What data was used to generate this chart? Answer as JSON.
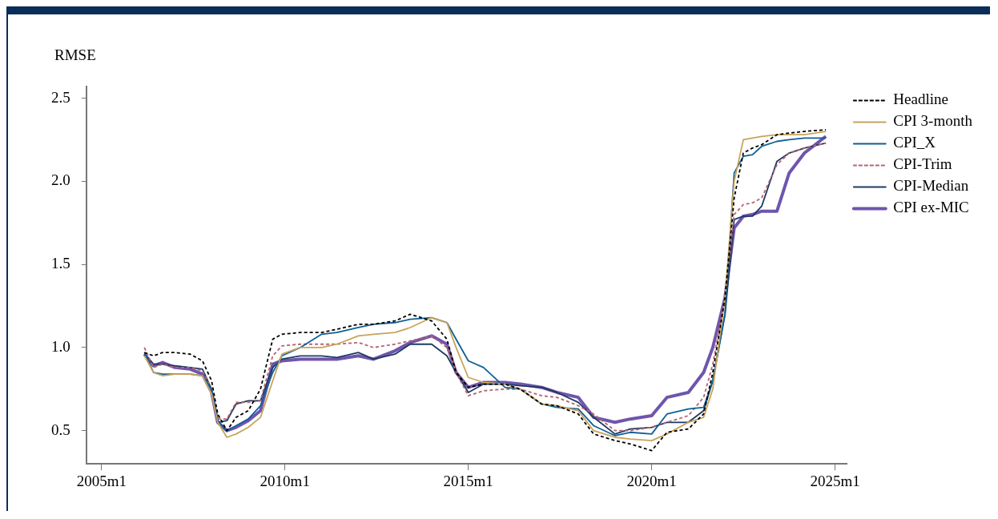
{
  "chart_data": {
    "type": "line",
    "ylabel": "RMSE",
    "x": [
      "2006-03",
      "2006-06",
      "2006-09",
      "2007-01",
      "2007-06",
      "2007-10",
      "2008-01",
      "2008-03",
      "2008-06",
      "2008-09",
      "2009-01",
      "2009-05",
      "2009-09",
      "2009-12",
      "2010-06",
      "2011-01",
      "2011-06",
      "2012-01",
      "2012-06",
      "2013-01",
      "2013-06",
      "2014-01",
      "2014-06",
      "2014-09",
      "2015-01",
      "2015-06",
      "2016-01",
      "2016-06",
      "2017-01",
      "2017-06",
      "2018-01",
      "2018-06",
      "2019-01",
      "2019-06",
      "2020-01",
      "2020-06",
      "2021-01",
      "2021-06",
      "2021-09",
      "2022-01",
      "2022-04",
      "2022-07",
      "2022-10",
      "2023-01",
      "2023-06",
      "2023-10",
      "2024-03",
      "2024-10"
    ],
    "series": [
      {
        "name": "Headline",
        "color": "#000000",
        "line_style": "dashed",
        "values": [
          0.97,
          0.95,
          0.97,
          0.97,
          0.96,
          0.92,
          0.8,
          0.6,
          0.5,
          0.58,
          0.62,
          0.75,
          1.05,
          1.08,
          1.09,
          1.09,
          1.11,
          1.14,
          1.14,
          1.16,
          1.2,
          1.16,
          1.05,
          0.85,
          0.76,
          0.78,
          0.78,
          0.75,
          0.66,
          0.65,
          0.6,
          0.48,
          0.44,
          0.42,
          0.38,
          0.49,
          0.51,
          0.6,
          0.85,
          1.3,
          1.9,
          2.17,
          2.2,
          2.22,
          2.28,
          2.29,
          2.3,
          2.31
        ]
      },
      {
        "name": "CPI 3-month",
        "color": "#c8a45a",
        "line_style": "solid",
        "values": [
          0.95,
          0.85,
          0.83,
          0.84,
          0.84,
          0.83,
          0.72,
          0.55,
          0.46,
          0.48,
          0.52,
          0.58,
          0.8,
          0.96,
          1.0,
          1.0,
          1.02,
          1.07,
          1.08,
          1.09,
          1.12,
          1.18,
          1.15,
          1.0,
          0.82,
          0.79,
          0.78,
          0.75,
          0.66,
          0.65,
          0.62,
          0.5,
          0.46,
          0.45,
          0.44,
          0.48,
          0.55,
          0.58,
          0.75,
          1.3,
          2.0,
          2.25,
          2.26,
          2.27,
          2.28,
          2.28,
          2.28,
          2.3
        ]
      },
      {
        "name": "CPI_X",
        "color": "#0f5f96",
        "line_style": "solid",
        "values": [
          0.97,
          0.85,
          0.84,
          0.84,
          0.84,
          0.83,
          0.75,
          0.56,
          0.5,
          0.53,
          0.57,
          0.65,
          0.85,
          0.95,
          1.0,
          1.08,
          1.09,
          1.12,
          1.14,
          1.15,
          1.17,
          1.18,
          1.15,
          1.05,
          0.92,
          0.88,
          0.76,
          0.75,
          0.66,
          0.64,
          0.63,
          0.53,
          0.47,
          0.49,
          0.48,
          0.6,
          0.63,
          0.64,
          0.8,
          1.2,
          2.05,
          2.15,
          2.16,
          2.21,
          2.24,
          2.25,
          2.26,
          2.26
        ]
      },
      {
        "name": "CPI-Trim",
        "color": "#b5646e",
        "line_style": "dashed",
        "values": [
          1.0,
          0.88,
          0.9,
          0.88,
          0.88,
          0.86,
          0.75,
          0.57,
          0.57,
          0.67,
          0.67,
          0.68,
          0.95,
          1.01,
          1.02,
          1.02,
          1.02,
          1.03,
          1.0,
          1.02,
          1.04,
          1.07,
          1.0,
          0.85,
          0.71,
          0.74,
          0.75,
          0.75,
          0.71,
          0.7,
          0.65,
          0.6,
          0.5,
          0.5,
          0.52,
          0.55,
          0.59,
          0.7,
          0.9,
          1.3,
          1.8,
          1.86,
          1.87,
          1.9,
          2.1,
          2.17,
          2.2,
          2.23
        ]
      },
      {
        "name": "CPI-Median",
        "color": "#1c3a63",
        "line_style": "solid",
        "values": [
          0.96,
          0.9,
          0.9,
          0.89,
          0.88,
          0.87,
          0.75,
          0.55,
          0.56,
          0.66,
          0.68,
          0.68,
          0.88,
          0.93,
          0.95,
          0.95,
          0.94,
          0.97,
          0.93,
          0.96,
          1.02,
          1.02,
          0.95,
          0.85,
          0.73,
          0.78,
          0.78,
          0.77,
          0.76,
          0.73,
          0.67,
          0.58,
          0.48,
          0.51,
          0.52,
          0.55,
          0.55,
          0.62,
          0.8,
          1.2,
          1.77,
          1.79,
          1.79,
          1.85,
          2.12,
          2.17,
          2.2,
          2.23
        ]
      },
      {
        "name": "CPI ex-MIC",
        "color": "#6f55ad",
        "line_style": "solid",
        "values": [
          0.96,
          0.89,
          0.91,
          0.88,
          0.87,
          0.84,
          0.73,
          0.55,
          0.5,
          0.52,
          0.56,
          0.62,
          0.9,
          0.92,
          0.93,
          0.93,
          0.93,
          0.95,
          0.93,
          0.98,
          1.03,
          1.07,
          1.02,
          0.85,
          0.76,
          0.79,
          0.79,
          0.78,
          0.76,
          0.73,
          0.7,
          0.58,
          0.55,
          0.57,
          0.59,
          0.7,
          0.73,
          0.85,
          1.0,
          1.3,
          1.72,
          1.79,
          1.8,
          1.82,
          1.82,
          2.05,
          2.17,
          2.27
        ]
      }
    ],
    "xlim": [
      "2004-08",
      "2025-05"
    ],
    "xticks": [
      {
        "value": "2005-01",
        "label": "2005m1"
      },
      {
        "value": "2010-01",
        "label": "2010m1"
      },
      {
        "value": "2015-01",
        "label": "2015m1"
      },
      {
        "value": "2020-01",
        "label": "2020m1"
      },
      {
        "value": "2025-01",
        "label": "2025m1"
      }
    ],
    "ylim": [
      0.3,
      2.57
    ],
    "yticks": [
      0.5,
      {
        "value": 1,
        "label": "1.0"
      },
      1.5,
      {
        "value": 2,
        "label": "2.0"
      },
      2.5
    ],
    "grid": false,
    "legend": "top right",
    "marker": "none"
  }
}
